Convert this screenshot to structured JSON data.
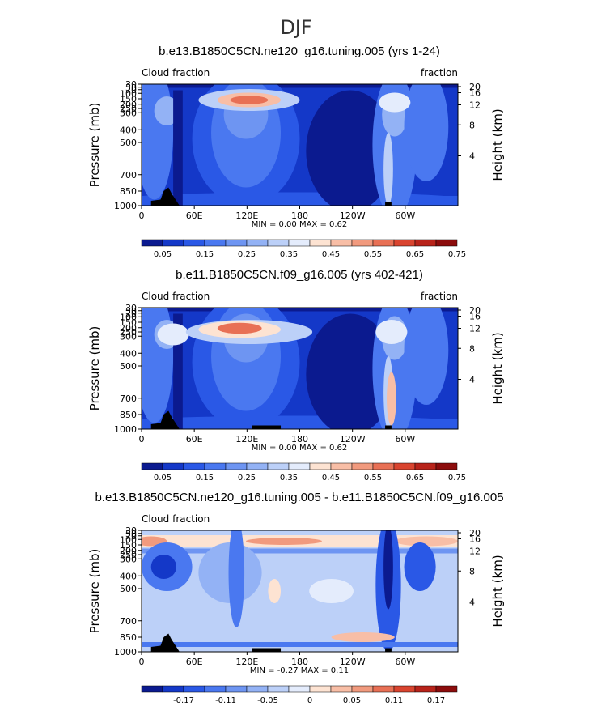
{
  "suptitle": "DJF",
  "panels": [
    {
      "title": "b.e13.B1850C5CN.ne120_g16.tuning.005 (yrs 1-24)",
      "left_label": "Cloud fraction",
      "right_label": "fraction",
      "minmax": "MIN =     0.00   MAX =     0.62",
      "colorbar_labels": [
        "0.05",
        "0.15",
        "0.25",
        "0.35",
        "0.45",
        "0.55",
        "0.65",
        "0.75"
      ],
      "colors": [
        "#0b1a8f",
        "#1438c8",
        "#2a58e6",
        "#4a78f0",
        "#6e95f2",
        "#93b2f5",
        "#bcd0f8",
        "#e4ecfc",
        "#fde3d2",
        "#f8bea6",
        "#f19a7e",
        "#e87055",
        "#d9442f",
        "#b8231a",
        "#8c0c0c"
      ]
    },
    {
      "title": "b.e11.B1850C5CN.f09_g16.005 (yrs 402-421)",
      "left_label": "Cloud fraction",
      "right_label": "fraction",
      "minmax": "MIN =     0.00   MAX =     0.62",
      "colorbar_labels": [
        "0.05",
        "0.15",
        "0.25",
        "0.35",
        "0.45",
        "0.55",
        "0.65",
        "0.75"
      ],
      "colors": [
        "#0b1a8f",
        "#1438c8",
        "#2a58e6",
        "#4a78f0",
        "#6e95f2",
        "#93b2f5",
        "#bcd0f8",
        "#e4ecfc",
        "#fde3d2",
        "#f8bea6",
        "#f19a7e",
        "#e87055",
        "#d9442f",
        "#b8231a",
        "#8c0c0c"
      ]
    },
    {
      "title": "b.e13.B1850C5CN.ne120_g16.tuning.005 - b.e11.B1850C5CN.f09_g16.005",
      "left_label": "Cloud fraction",
      "right_label": "",
      "minmax": "MIN =    -0.27   MAX =     0.11",
      "colorbar_labels": [
        "-0.17",
        "-0.11",
        "-0.05",
        "0",
        "0.05",
        "0.11",
        "0.17"
      ],
      "colors": [
        "#0b1a8f",
        "#1438c8",
        "#2a58e6",
        "#4a78f0",
        "#6e95f2",
        "#93b2f5",
        "#bcd0f8",
        "#e4ecfc",
        "#fde3d2",
        "#f8bea6",
        "#f19a7e",
        "#e87055",
        "#d9442f",
        "#b8231a",
        "#8c0c0c"
      ]
    }
  ],
  "axes": {
    "ylabel": "Pressure (mb)",
    "y2label": "Height (km)",
    "pressure_ticks": [
      "30",
      "50",
      "70",
      "100",
      "150",
      "200",
      "250",
      "300",
      "400",
      "500",
      "700",
      "850",
      "1000"
    ],
    "height_ticks": [
      "20",
      "16",
      "12",
      "8",
      "4"
    ],
    "lon_ticks": [
      "0",
      "60E",
      "120E",
      "180",
      "120W",
      "60W"
    ]
  },
  "chart_data": [
    {
      "type": "heatmap",
      "title": "b.e13.B1850C5CN.ne120_g16.tuning.005 (yrs 1-24)",
      "ylabel": "Pressure (mb)",
      "y2label": "Height (km)",
      "x_ticks": [
        "0",
        "60E",
        "120E",
        "180",
        "120W",
        "60W"
      ],
      "y_ticks": [
        30,
        50,
        70,
        100,
        150,
        200,
        250,
        300,
        400,
        500,
        700,
        850,
        1000
      ],
      "min": 0.0,
      "max": 0.62,
      "colorbar": [
        "0.05",
        "0.15",
        "0.25",
        "0.35",
        "0.45",
        "0.55",
        "0.65",
        "0.75"
      ],
      "features": [
        {
          "lon": 120,
          "p": 150,
          "value": 0.62
        },
        {
          "lon": 15,
          "p": 200,
          "value": 0.35
        },
        {
          "lon": 300,
          "p": 150,
          "value": 0.4
        },
        {
          "lon": 300,
          "p": 900,
          "value": 0.45
        }
      ]
    },
    {
      "type": "heatmap",
      "title": "b.e11.B1850C5CN.f09_g16.005 (yrs 402-421)",
      "ylabel": "Pressure (mb)",
      "y2label": "Height (km)",
      "x_ticks": [
        "0",
        "60E",
        "120E",
        "180",
        "120W",
        "60W"
      ],
      "y_ticks": [
        30,
        50,
        70,
        100,
        150,
        200,
        250,
        300,
        400,
        500,
        700,
        850,
        1000
      ],
      "min": 0.0,
      "max": 0.62,
      "colorbar": [
        "0.05",
        "0.15",
        "0.25",
        "0.35",
        "0.45",
        "0.55",
        "0.65",
        "0.75"
      ],
      "features": [
        {
          "lon": 120,
          "p": 200,
          "value": 0.62
        },
        {
          "lon": 15,
          "p": 200,
          "value": 0.4
        },
        {
          "lon": 300,
          "p": 200,
          "value": 0.4
        },
        {
          "lon": 300,
          "p": 800,
          "value": 0.45
        }
      ]
    },
    {
      "type": "heatmap",
      "title": "b.e13.B1850C5CN.ne120_g16.tuning.005 - b.e11.B1850C5CN.f09_g16.005",
      "ylabel": "Pressure (mb)",
      "y2label": "Height (km)",
      "x_ticks": [
        "0",
        "60E",
        "120E",
        "180",
        "120W",
        "60W"
      ],
      "y_ticks": [
        30,
        50,
        70,
        100,
        150,
        200,
        250,
        300,
        400,
        500,
        700,
        850,
        1000
      ],
      "min": -0.27,
      "max": 0.11,
      "colorbar": [
        "-0.17",
        "-0.11",
        "-0.05",
        "0",
        "0.05",
        "0.11",
        "0.17"
      ],
      "features": [
        {
          "lon": 180,
          "p": 110,
          "value": 0.11
        },
        {
          "lon": 20,
          "p": 250,
          "value": -0.2
        },
        {
          "lon": 300,
          "p": 250,
          "value": -0.27
        },
        {
          "lon": 270,
          "p": 900,
          "value": 0.08
        }
      ]
    }
  ]
}
